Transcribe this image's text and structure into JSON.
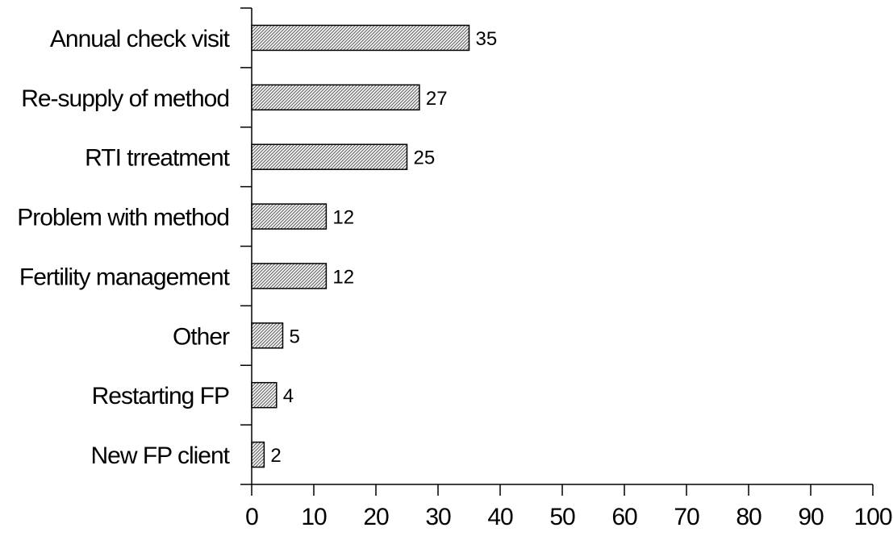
{
  "chart_data": {
    "type": "bar",
    "orientation": "horizontal",
    "categories": [
      "Annual check visit",
      "Re-supply of method",
      "RTI trreatment",
      "Problem with method",
      "Fertility management",
      "Other",
      "Restarting FP",
      "New FP client"
    ],
    "values": [
      35,
      27,
      25,
      12,
      12,
      5,
      4,
      2
    ],
    "data_labels": [
      "35",
      "27",
      "25",
      "12",
      "12",
      "5",
      "4",
      "2"
    ],
    "xlim": [
      0,
      100
    ],
    "x_ticks": [
      0,
      10,
      20,
      30,
      40,
      50,
      60,
      70,
      80,
      90,
      100
    ],
    "x_tick_labels": [
      "0",
      "10",
      "20",
      "30",
      "40",
      "50",
      "60",
      "70",
      "80",
      "90",
      "100"
    ],
    "title": "",
    "xlabel": "",
    "ylabel": "",
    "grid": false,
    "legend": "none",
    "bar_fill": "hatched",
    "bar_color": "#a0a0a0",
    "bar_edge_color": "#000000"
  }
}
